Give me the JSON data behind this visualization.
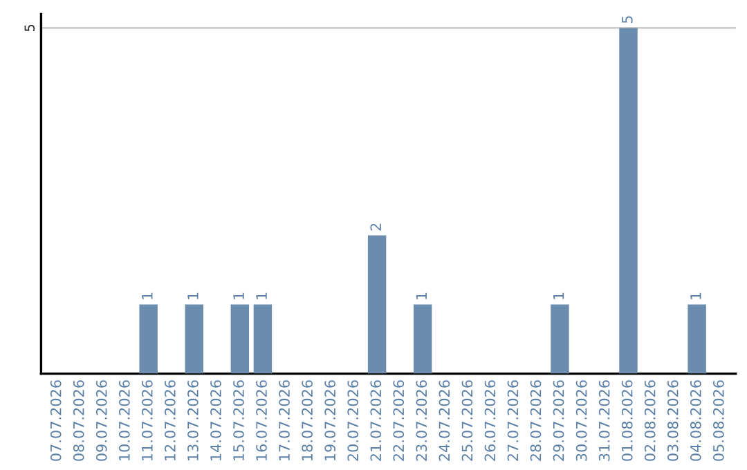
{
  "chart_data": {
    "type": "bar",
    "categories": [
      "07.07.2026",
      "08.07.2026",
      "09.07.2026",
      "10.07.2026",
      "11.07.2026",
      "12.07.2026",
      "13.07.2026",
      "14.07.2026",
      "15.07.2026",
      "16.07.2026",
      "17.07.2026",
      "18.07.2026",
      "19.07.2026",
      "20.07.2026",
      "21.07.2026",
      "22.07.2026",
      "23.07.2026",
      "24.07.2026",
      "25.07.2026",
      "26.07.2026",
      "27.07.2026",
      "28.07.2026",
      "29.07.2026",
      "30.07.2026",
      "31.07.2026",
      "01.08.2026",
      "02.08.2026",
      "03.08.2026",
      "04.08.2026",
      "05.08.2026"
    ],
    "values": [
      0,
      0,
      0,
      0,
      1,
      0,
      1,
      0,
      1,
      1,
      0,
      0,
      0,
      0,
      2,
      0,
      1,
      0,
      0,
      0,
      0,
      0,
      1,
      0,
      0,
      5,
      0,
      0,
      1,
      0
    ],
    "value_labels": [
      null,
      null,
      null,
      null,
      "1",
      null,
      "1",
      null,
      "1",
      "1",
      null,
      null,
      null,
      null,
      "2",
      null,
      "1",
      null,
      null,
      null,
      null,
      null,
      "1",
      null,
      null,
      "5",
      null,
      null,
      "1",
      null
    ],
    "color": "#6b8cad",
    "ylim": [
      0,
      5.2
    ],
    "yticks": [
      5
    ],
    "grid": "y"
  }
}
